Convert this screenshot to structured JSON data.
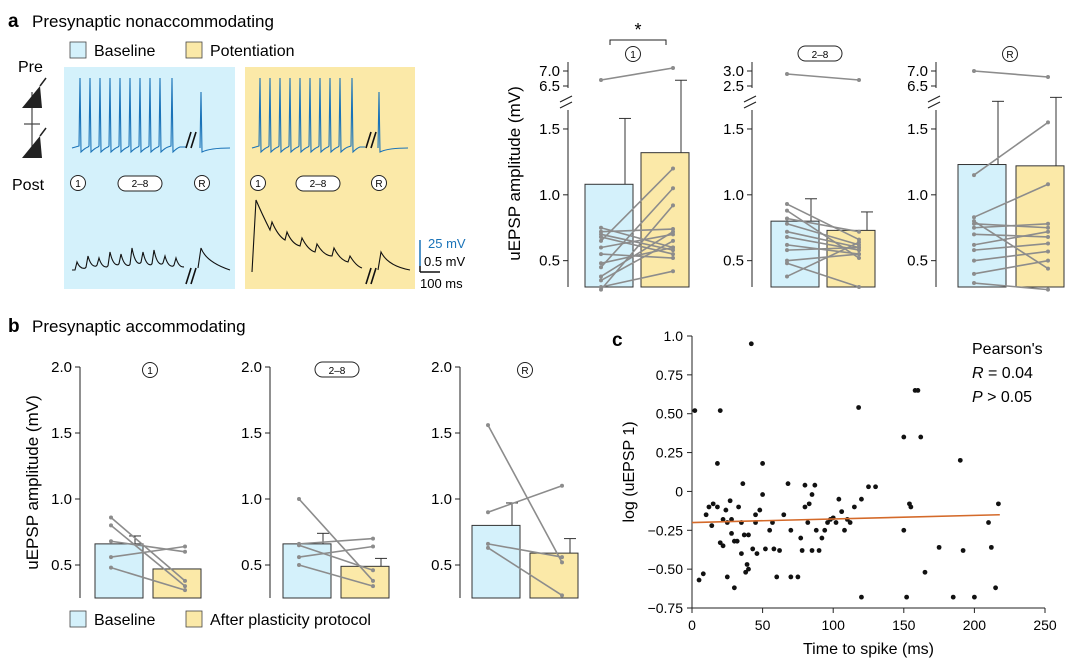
{
  "panels": {
    "a": {
      "letter": "a",
      "title": "Presynaptic nonaccommodating"
    },
    "b": {
      "letter": "b",
      "title": "Presynaptic accommodating"
    },
    "c": {
      "letter": "c"
    }
  },
  "panel_a": {
    "pre_label": "Pre",
    "post_label": "Post",
    "legend": [
      {
        "label": "Baseline",
        "color": "#d4f1fb"
      },
      {
        "label": "Potentiation",
        "color": "#fbe9a8"
      }
    ],
    "spike_tags": [
      "1",
      "2–8",
      "R"
    ],
    "scale_bar": {
      "blue": "25 mV",
      "black": "0.5 mV",
      "time": "100 ms"
    }
  },
  "colors": {
    "baseline_fill": "#d4f1fb",
    "potentiation_fill": "#fbe9a8",
    "after_fill": "#fbe9a8",
    "trace_blue": "#1a73b8",
    "trace_black": "#111111",
    "pair_line": "#8c8c8c",
    "fit_line": "#d46a2a",
    "significance": "*"
  },
  "chart_data": [
    {
      "type": "bar",
      "panel": "a",
      "categories": [
        "Baseline",
        "Potentiation"
      ],
      "ylabel": "uEPSP amplitude (mV)",
      "tag": "1",
      "ylim": [
        0.3,
        1.75
      ],
      "yticks": [
        0.5,
        1.0,
        1.5
      ],
      "broken_axis_ticks": [
        "7.0",
        "6.5"
      ],
      "significance": "*",
      "series": [
        {
          "name": "Baseline",
          "mean": 1.08,
          "err": 0.5
        },
        {
          "name": "Potentiation",
          "mean": 1.32,
          "err": 0.55
        }
      ],
      "pairs": [
        [
          0.72,
          0.74
        ],
        [
          0.68,
          0.55
        ],
        [
          0.7,
          0.58
        ],
        [
          0.6,
          0.7
        ],
        [
          0.55,
          0.52
        ],
        [
          0.38,
          0.72
        ],
        [
          0.35,
          0.65
        ],
        [
          0.3,
          0.42
        ],
        [
          0.45,
          1.05
        ],
        [
          0.48,
          0.6
        ],
        [
          0.28,
          0.92
        ],
        [
          0.65,
          1.2
        ],
        [
          0.75,
          0.6
        ]
      ],
      "outlier_pair": [
        6.7,
        7.1
      ]
    },
    {
      "type": "bar",
      "panel": "a",
      "categories": [
        "Baseline",
        "Potentiation"
      ],
      "tag": "2–8",
      "ylim": [
        0.3,
        1.75
      ],
      "yticks": [
        0.5,
        1.0,
        1.5
      ],
      "broken_axis_ticks": [
        "3.0",
        "2.5"
      ],
      "series": [
        {
          "name": "Baseline",
          "mean": 0.8,
          "err": 0.17
        },
        {
          "name": "Potentiation",
          "mean": 0.73,
          "err": 0.14
        }
      ],
      "pairs": [
        [
          0.93,
          0.66
        ],
        [
          0.82,
          0.72
        ],
        [
          0.78,
          0.62
        ],
        [
          0.72,
          0.6
        ],
        [
          0.68,
          0.58
        ],
        [
          0.62,
          0.55
        ],
        [
          0.58,
          0.6
        ],
        [
          0.5,
          0.55
        ],
        [
          0.48,
          0.3
        ],
        [
          0.38,
          0.64
        ],
        [
          0.88,
          0.52
        ]
      ],
      "outlier_pair": [
        2.9,
        2.7
      ]
    },
    {
      "type": "bar",
      "panel": "a",
      "categories": [
        "Baseline",
        "Potentiation"
      ],
      "tag": "R",
      "ylim": [
        0.3,
        1.75
      ],
      "yticks": [
        0.5,
        1.0,
        1.5
      ],
      "broken_axis_ticks": [
        "7.0",
        "6.5"
      ],
      "series": [
        {
          "name": "Baseline",
          "mean": 1.23,
          "err": 0.48
        },
        {
          "name": "Potentiation",
          "mean": 1.22,
          "err": 0.52
        }
      ],
      "pairs": [
        [
          1.15,
          1.55
        ],
        [
          0.83,
          1.08
        ],
        [
          0.78,
          0.75
        ],
        [
          0.75,
          0.78
        ],
        [
          0.7,
          0.68
        ],
        [
          0.62,
          0.72
        ],
        [
          0.58,
          0.63
        ],
        [
          0.5,
          0.57
        ],
        [
          0.4,
          0.5
        ],
        [
          0.33,
          0.28
        ],
        [
          0.8,
          0.44
        ]
      ],
      "outlier_pair": [
        7.0,
        6.8
      ]
    },
    {
      "type": "bar",
      "panel": "b",
      "categories": [
        "Baseline",
        "After plasticity protocol"
      ],
      "ylabel": "uEPSP amplitude (mV)",
      "tag": "1",
      "ylim": [
        0.0,
        2.0
      ],
      "yticks": [
        0.5,
        1.0,
        1.5,
        2.0
      ],
      "series": [
        {
          "name": "Baseline",
          "mean": 0.66,
          "err": 0.06
        },
        {
          "name": "After plasticity protocol",
          "mean": 0.47,
          "err": 0
        }
      ],
      "pairs": [
        [
          0.86,
          0.38
        ],
        [
          0.8,
          0.34
        ],
        [
          0.68,
          0.6
        ],
        [
          0.56,
          0.64
        ],
        [
          0.48,
          0.31
        ]
      ]
    },
    {
      "type": "bar",
      "panel": "b",
      "categories": [
        "Baseline",
        "After plasticity protocol"
      ],
      "tag": "2–8",
      "ylim": [
        0.0,
        2.0
      ],
      "yticks": [
        0.5,
        1.0,
        1.5,
        2.0
      ],
      "series": [
        {
          "name": "Baseline",
          "mean": 0.66,
          "err": 0.08
        },
        {
          "name": "After plasticity protocol",
          "mean": 0.49,
          "err": 0.06
        }
      ],
      "pairs": [
        [
          1.0,
          0.38
        ],
        [
          0.66,
          0.7
        ],
        [
          0.65,
          0.46
        ],
        [
          0.56,
          0.64
        ],
        [
          0.5,
          0.34
        ]
      ]
    },
    {
      "type": "bar",
      "panel": "b",
      "categories": [
        "Baseline",
        "After plasticity protocol"
      ],
      "tag": "R",
      "ylim": [
        0.0,
        2.0
      ],
      "yticks": [
        0.5,
        1.0,
        1.5,
        2.0
      ],
      "series": [
        {
          "name": "Baseline",
          "mean": 0.8,
          "err": 0.17
        },
        {
          "name": "After plasticity protocol",
          "mean": 0.59,
          "err": 0.11
        }
      ],
      "pairs": [
        [
          1.56,
          0.52
        ],
        [
          0.9,
          1.1
        ],
        [
          0.66,
          0.56
        ],
        [
          0.63,
          0.27
        ]
      ]
    },
    {
      "type": "scatter",
      "panel": "c",
      "xlabel": "Time to spike (ms)",
      "ylabel": "log (uEPSP 1)",
      "xlim": [
        0,
        250
      ],
      "ylim": [
        -0.75,
        1.0
      ],
      "xticks": [
        0,
        50,
        100,
        150,
        200,
        250
      ],
      "yticks": [
        -0.75,
        -0.5,
        -0.25,
        0,
        0.25,
        0.5,
        0.75,
        1.0
      ],
      "ytick_labels": [
        "−0.75",
        "−0.50",
        "−0.25",
        "0",
        "0.25",
        "0.50",
        "0.75",
        "1.0"
      ],
      "annotation": {
        "line1": "Pearson's",
        "line2": "R = 0.04",
        "line3": "P > 0.05"
      },
      "fit": {
        "x": [
          0,
          218
        ],
        "y": [
          -0.2,
          -0.15
        ]
      },
      "points": [
        [
          2,
          0.52
        ],
        [
          5,
          -0.57
        ],
        [
          8,
          -0.53
        ],
        [
          10,
          -0.15
        ],
        [
          12,
          -0.1
        ],
        [
          14,
          -0.22
        ],
        [
          15,
          -0.08
        ],
        [
          18,
          0.18
        ],
        [
          18,
          -0.1
        ],
        [
          20,
          0.52
        ],
        [
          20,
          -0.33
        ],
        [
          22,
          -0.18
        ],
        [
          22,
          -0.35
        ],
        [
          24,
          -0.12
        ],
        [
          25,
          -0.2
        ],
        [
          25,
          -0.55
        ],
        [
          27,
          -0.06
        ],
        [
          28,
          -0.27
        ],
        [
          28,
          -0.18
        ],
        [
          30,
          -0.32
        ],
        [
          30,
          -0.62
        ],
        [
          32,
          -0.32
        ],
        [
          33,
          -0.1
        ],
        [
          35,
          -0.2
        ],
        [
          35,
          -0.4
        ],
        [
          36,
          0.05
        ],
        [
          37,
          -0.28
        ],
        [
          38,
          -0.52
        ],
        [
          39,
          -0.47
        ],
        [
          40,
          -0.28
        ],
        [
          40,
          -0.5
        ],
        [
          42,
          0.95
        ],
        [
          43,
          -0.37
        ],
        [
          45,
          -0.15
        ],
        [
          45,
          -0.2
        ],
        [
          46,
          -0.4
        ],
        [
          48,
          -0.12
        ],
        [
          50,
          0.18
        ],
        [
          50,
          -0.02
        ],
        [
          52,
          -0.37
        ],
        [
          55,
          -0.25
        ],
        [
          57,
          -0.2
        ],
        [
          58,
          -0.37
        ],
        [
          60,
          -0.55
        ],
        [
          62,
          -0.38
        ],
        [
          65,
          -0.15
        ],
        [
          68,
          0.05
        ],
        [
          70,
          -0.55
        ],
        [
          70,
          -0.25
        ],
        [
          75,
          -0.55
        ],
        [
          77,
          -0.3
        ],
        [
          78,
          -0.38
        ],
        [
          80,
          0.04
        ],
        [
          80,
          -0.1
        ],
        [
          82,
          -0.2
        ],
        [
          83,
          -0.08
        ],
        [
          85,
          -0.02
        ],
        [
          85,
          -0.38
        ],
        [
          87,
          0.04
        ],
        [
          88,
          -0.25
        ],
        [
          90,
          -0.38
        ],
        [
          92,
          -0.3
        ],
        [
          94,
          -0.25
        ],
        [
          96,
          -0.2
        ],
        [
          98,
          -0.18
        ],
        [
          100,
          -0.17
        ],
        [
          102,
          -0.2
        ],
        [
          104,
          -0.05
        ],
        [
          106,
          -0.13
        ],
        [
          108,
          -0.25
        ],
        [
          110,
          -0.18
        ],
        [
          112,
          -0.2
        ],
        [
          115,
          -0.1
        ],
        [
          118,
          0.54
        ],
        [
          120,
          -0.68
        ],
        [
          120,
          -0.05
        ],
        [
          125,
          0.03
        ],
        [
          130,
          0.03
        ],
        [
          150,
          0.35
        ],
        [
          150,
          -0.25
        ],
        [
          152,
          -0.68
        ],
        [
          154,
          -0.08
        ],
        [
          155,
          -0.1
        ],
        [
          158,
          0.65
        ],
        [
          160,
          0.65
        ],
        [
          162,
          0.35
        ],
        [
          165,
          -0.52
        ],
        [
          175,
          -0.36
        ],
        [
          185,
          -0.68
        ],
        [
          190,
          0.2
        ],
        [
          192,
          -0.38
        ],
        [
          200,
          -0.68
        ],
        [
          210,
          -0.2
        ],
        [
          212,
          -0.36
        ],
        [
          215,
          -0.62
        ],
        [
          217,
          -0.08
        ]
      ]
    }
  ],
  "panel_b_legend": [
    {
      "label": "Baseline",
      "color": "#d4f1fb"
    },
    {
      "label": "After plasticity protocol",
      "color": "#fbe9a8"
    }
  ]
}
